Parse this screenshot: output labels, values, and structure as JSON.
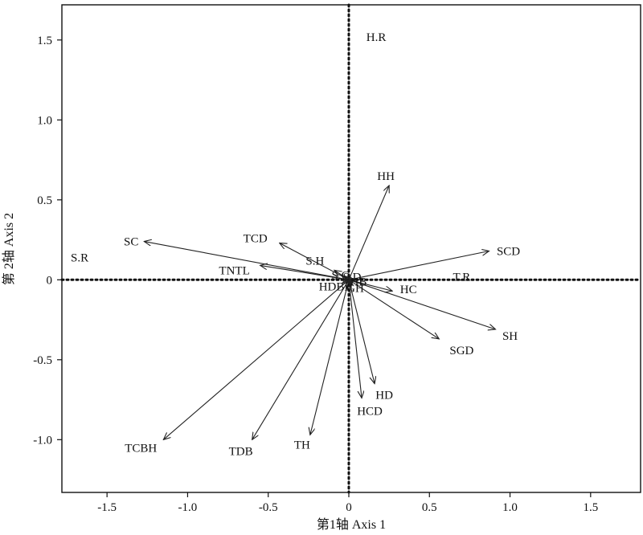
{
  "chart_data": {
    "type": "scatter",
    "title": "",
    "xlabel": "第1轴 Axis 1",
    "ylabel": "第 2轴 Axis 2",
    "xlim": [
      -1.78,
      1.81
    ],
    "ylim": [
      -1.33,
      1.72
    ],
    "xticks": [
      -1.5,
      -1.0,
      -0.5,
      0,
      0.5,
      1.0,
      1.5
    ],
    "yticks": [
      -1.0,
      -0.5,
      0,
      0.5,
      1.0,
      1.5
    ],
    "xtick_labels": [
      "-1.5",
      "-1.0",
      "-0.5",
      "0",
      "0.5",
      "1.0",
      "1.5"
    ],
    "ytick_labels": [
      "-1.0",
      "-0.5",
      "0",
      "0.5",
      "1.0",
      "1.5"
    ],
    "zero_lines": "dotted",
    "arrow_color": "#222222",
    "vectors": [
      {
        "name": "SC",
        "x": -1.27,
        "y": 0.24,
        "lx": -1.35,
        "ly": 0.24
      },
      {
        "name": "TCD",
        "x": -0.43,
        "y": 0.23,
        "lx": -0.58,
        "ly": 0.26
      },
      {
        "name": "S.H",
        "x": -0.09,
        "y": 0.06,
        "lx": -0.21,
        "ly": 0.12
      },
      {
        "name": "TNTL",
        "x": -0.55,
        "y": 0.09,
        "lx": -0.71,
        "ly": 0.06
      },
      {
        "name": "HH",
        "x": 0.25,
        "y": 0.59,
        "lx": 0.23,
        "ly": 0.65
      },
      {
        "name": "SCD",
        "x": 0.87,
        "y": 0.18,
        "lx": 0.99,
        "ly": 0.18
      },
      {
        "name": "HC",
        "x": 0.27,
        "y": -0.07,
        "lx": 0.37,
        "ly": -0.06
      },
      {
        "name": "SH",
        "x": 0.91,
        "y": -0.31,
        "lx": 1.0,
        "ly": -0.35
      },
      {
        "name": "SGD",
        "x": 0.56,
        "y": -0.37,
        "lx": 0.7,
        "ly": -0.44
      },
      {
        "name": "HD",
        "x": 0.16,
        "y": -0.65,
        "lx": 0.22,
        "ly": -0.72
      },
      {
        "name": "HCD",
        "x": 0.08,
        "y": -0.74,
        "lx": 0.13,
        "ly": -0.82
      },
      {
        "name": "TH",
        "x": -0.24,
        "y": -0.97,
        "lx": -0.29,
        "ly": -1.03
      },
      {
        "name": "TDB",
        "x": -0.6,
        "y": -1.0,
        "lx": -0.67,
        "ly": -1.07
      },
      {
        "name": "TCBH",
        "x": -1.15,
        "y": -1.0,
        "lx": -1.29,
        "ly": -1.05
      },
      {
        "name": "S.G",
        "x": -0.03,
        "y": 0.02,
        "lx": -0.05,
        "ly": 0.03
      },
      {
        "name": "S.D",
        "x": 0.01,
        "y": 0.02,
        "lx": 0.02,
        "ly": 0.02
      },
      {
        "name": "HB",
        "x": 0.02,
        "y": 0.0,
        "lx": 0.06,
        "ly": -0.01
      },
      {
        "name": "HDBH",
        "x": -0.04,
        "y": -0.02,
        "lx": -0.08,
        "ly": -0.04
      },
      {
        "name": "GH",
        "x": 0.02,
        "y": -0.02,
        "lx": 0.04,
        "ly": -0.05
      }
    ],
    "sites": [
      {
        "name": "H.R",
        "x": 0.17,
        "y": 1.52
      },
      {
        "name": "S.R",
        "x": -1.67,
        "y": 0.14
      },
      {
        "name": "T.R",
        "x": 0.7,
        "y": 0.02
      }
    ]
  }
}
